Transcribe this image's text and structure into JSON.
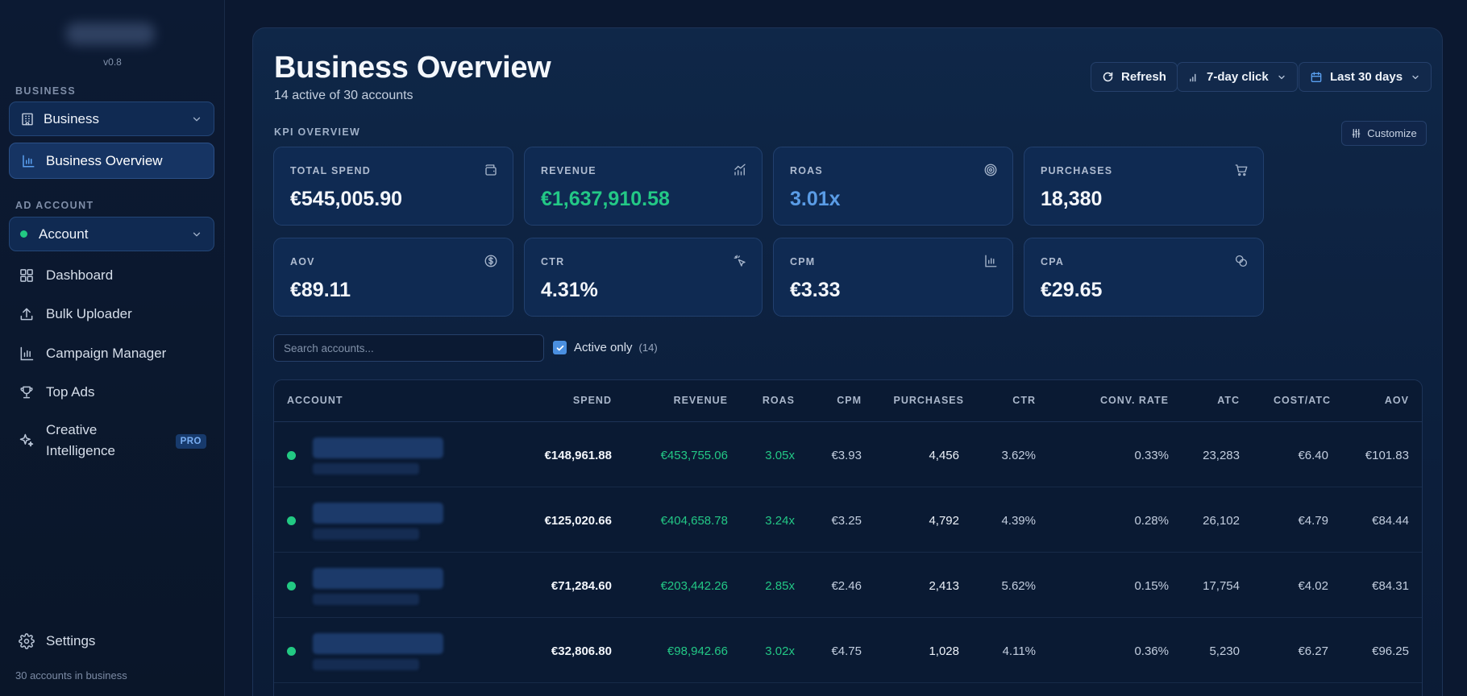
{
  "sidebar": {
    "version": "v0.8",
    "business_section": "BUSINESS",
    "business_select": "Business",
    "active_item": "Business Overview",
    "ad_account_section": "AD ACCOUNT",
    "account_select": "Account",
    "items": [
      {
        "label": "Dashboard",
        "icon": "grid-icon"
      },
      {
        "label": "Bulk Uploader",
        "icon": "upload-icon"
      },
      {
        "label": "Campaign Manager",
        "icon": "bar-chart-icon"
      },
      {
        "label": "Top Ads",
        "icon": "trophy-icon"
      },
      {
        "label": "Creative Intelligence",
        "line1": "Creative",
        "line2": "Intelligence",
        "icon": "sparkles-icon",
        "badge": "PRO"
      }
    ],
    "settings": "Settings",
    "footer": "30 accounts in business"
  },
  "header": {
    "title": "Business Overview",
    "subtitle": "14 active of 30 accounts",
    "refresh": "Refresh",
    "attribution": "7-day click",
    "date_range": "Last 30 days"
  },
  "kpi": {
    "section_label": "KPI OVERVIEW",
    "customize": "Customize",
    "cards": [
      {
        "label": "TOTAL SPEND",
        "value": "€545,005.90",
        "icon": "wallet-icon",
        "color": "#f3f6fb"
      },
      {
        "label": "REVENUE",
        "value": "€1,637,910.58",
        "icon": "trend-up-icon",
        "color": "#23c886"
      },
      {
        "label": "ROAS",
        "value": "3.01x",
        "icon": "target-icon",
        "color": "#5a9ce6"
      },
      {
        "label": "PURCHASES",
        "value": "18,380",
        "icon": "cart-icon",
        "color": "#f3f6fb"
      },
      {
        "label": "AOV",
        "value": "€89.11",
        "icon": "dollar-circle-icon",
        "color": "#f3f6fb"
      },
      {
        "label": "CTR",
        "value": "4.31%",
        "icon": "cursor-click-icon",
        "color": "#f3f6fb"
      },
      {
        "label": "CPM",
        "value": "€3.33",
        "icon": "bar-chart-icon",
        "color": "#f3f6fb"
      },
      {
        "label": "CPA",
        "value": "€29.65",
        "icon": "coins-icon",
        "color": "#f3f6fb"
      }
    ]
  },
  "filters": {
    "search_placeholder": "Search accounts...",
    "active_only": "Active only",
    "active_count": "(14)"
  },
  "table": {
    "columns": [
      "ACCOUNT",
      "SPEND",
      "REVENUE",
      "ROAS",
      "CPM",
      "PURCHASES",
      "CTR",
      "CONV. RATE",
      "ATC",
      "COST/ATC",
      "AOV"
    ],
    "rows": [
      {
        "spend": "€148,961.88",
        "revenue": "€453,755.06",
        "roas": "3.05x",
        "cpm": "€3.93",
        "purchases": "4,456",
        "ctr": "3.62%",
        "conv_rate": "0.33%",
        "atc": "23,283",
        "cost_atc": "€6.40",
        "aov": "€101.83"
      },
      {
        "spend": "€125,020.66",
        "revenue": "€404,658.78",
        "roas": "3.24x",
        "cpm": "€3.25",
        "purchases": "4,792",
        "ctr": "4.39%",
        "conv_rate": "0.28%",
        "atc": "26,102",
        "cost_atc": "€4.79",
        "aov": "€84.44"
      },
      {
        "spend": "€71,284.60",
        "revenue": "€203,442.26",
        "roas": "2.85x",
        "cpm": "€2.46",
        "purchases": "2,413",
        "ctr": "5.62%",
        "conv_rate": "0.15%",
        "atc": "17,754",
        "cost_atc": "€4.02",
        "aov": "€84.31"
      },
      {
        "spend": "€32,806.80",
        "revenue": "€98,942.66",
        "roas": "3.02x",
        "cpm": "€4.75",
        "purchases": "1,028",
        "ctr": "4.11%",
        "conv_rate": "0.36%",
        "atc": "5,230",
        "cost_atc": "€6.27",
        "aov": "€96.25"
      }
    ]
  },
  "colors": {
    "accent": "#4a8fe0",
    "positive": "#23c886",
    "roas_kpi": "#5a9ce6"
  }
}
